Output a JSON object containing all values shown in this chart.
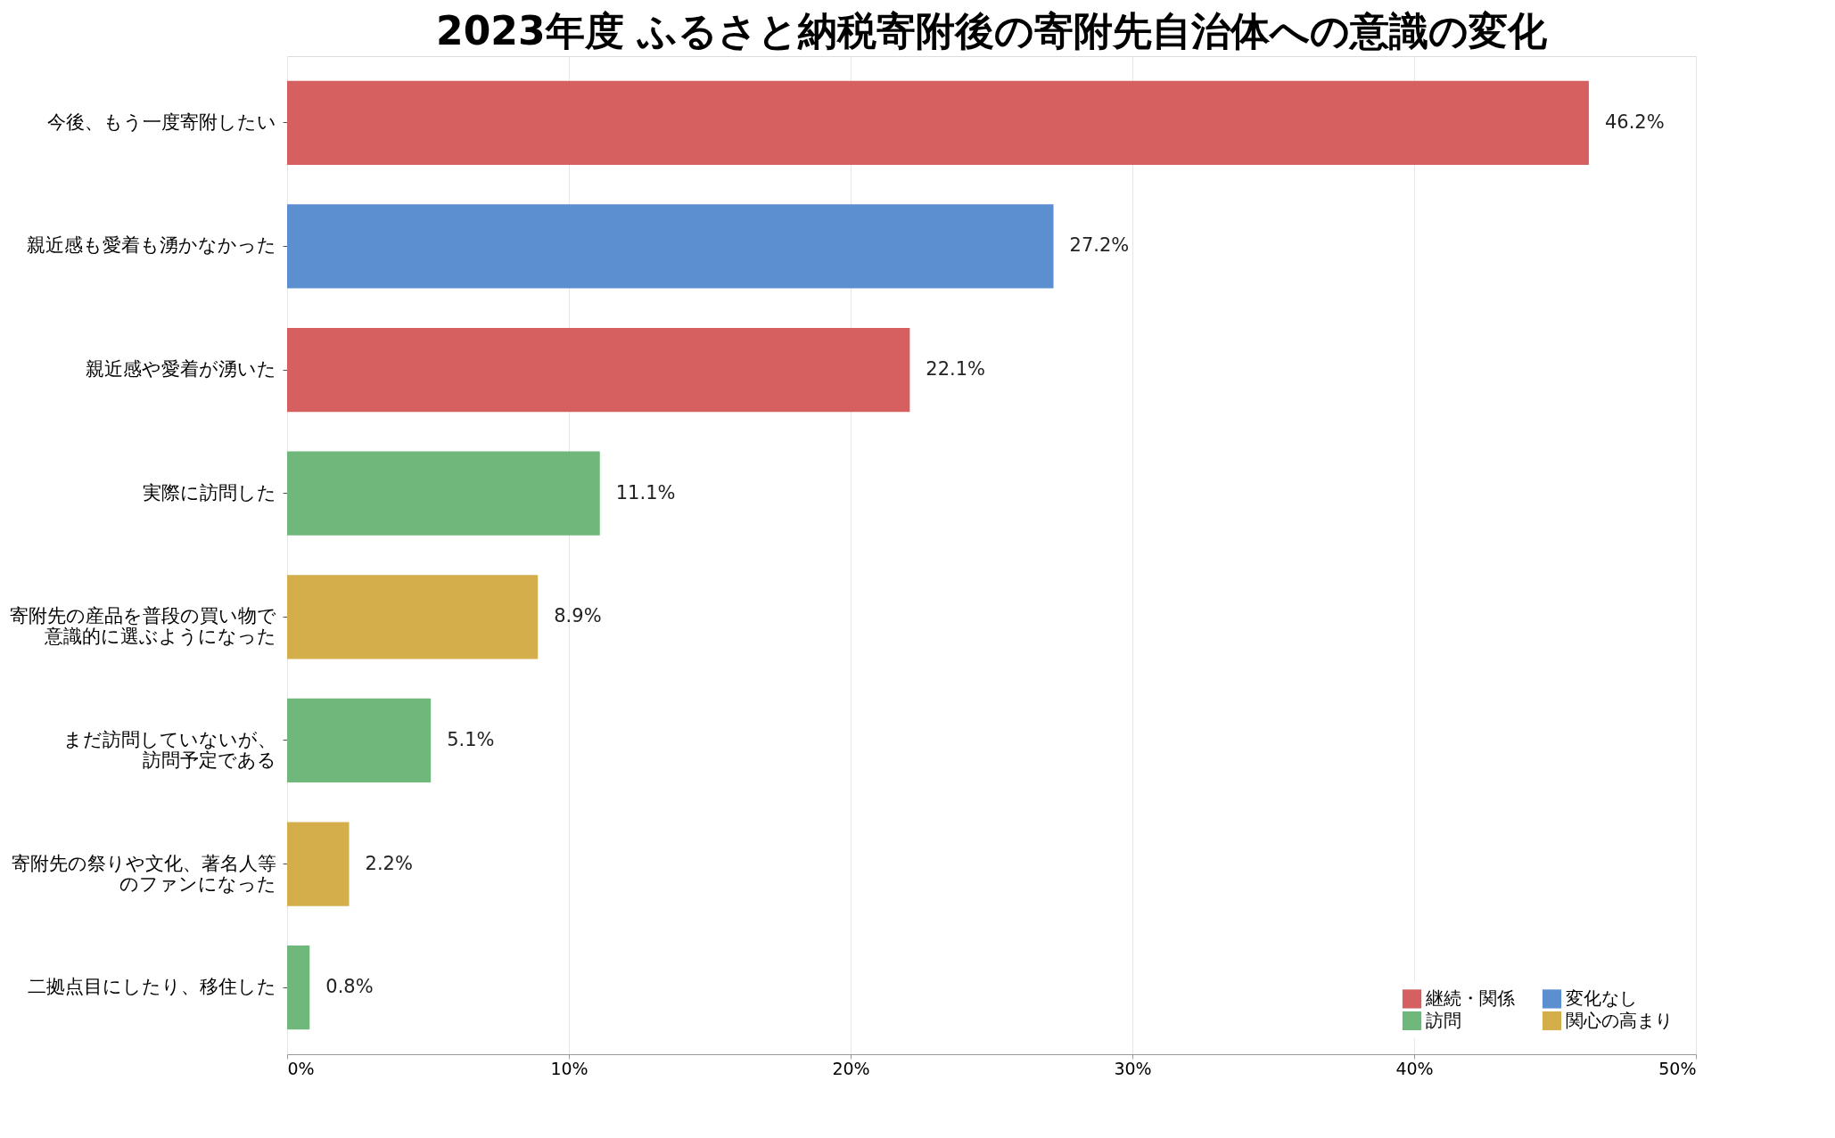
{
  "chart_data": {
    "type": "bar",
    "orientation": "horizontal",
    "title": "2023年度 ふるさと納税寄附後の寄附先自治体への意識の変化",
    "categories": [
      "今後、もう一度寄附したい",
      "親近感も愛着も湧かなかった",
      "親近感や愛着が湧いた",
      "実際に訪問した",
      "寄附先の産品を普段の買い物で意識的に選ぶようになった",
      "まだ訪問していないが、訪問予定である",
      "寄附先の祭りや文化、著名人等のファンになった",
      "二拠点目にしたり、移住した"
    ],
    "series": [
      {
        "name": "継続・関係",
        "color": "#d65f5f",
        "values": [
          46.2,
          null,
          22.1,
          null,
          null,
          null,
          null,
          null
        ],
        "value_labels": [
          "46.2%",
          null,
          "22.1%",
          null,
          null,
          null,
          null,
          null
        ]
      },
      {
        "name": "訪問",
        "color": "#6fb77a",
        "values": [
          null,
          null,
          null,
          11.1,
          null,
          5.1,
          null,
          0.8
        ],
        "value_labels": [
          null,
          null,
          null,
          "11.1%",
          null,
          "5.1%",
          null,
          "0.8%"
        ]
      },
      {
        "name": "変化なし",
        "color": "#5b8fd0",
        "values": [
          null,
          27.2,
          null,
          null,
          null,
          null,
          null,
          null
        ],
        "value_labels": [
          null,
          "27.2%",
          null,
          null,
          null,
          null,
          null,
          null
        ]
      },
      {
        "name": "関心の高まり",
        "color": "#d4ae4a",
        "values": [
          null,
          null,
          null,
          null,
          8.9,
          null,
          2.2,
          null
        ],
        "value_labels": [
          null,
          null,
          null,
          null,
          "8.9%",
          null,
          "2.2%",
          null
        ]
      }
    ],
    "xlim": [
      0,
      50
    ],
    "xticks": [
      {
        "value": 0,
        "label": "0%"
      },
      {
        "value": 10,
        "label": "10%"
      },
      {
        "value": 20,
        "label": "20%"
      },
      {
        "value": 30,
        "label": "30%"
      },
      {
        "value": 40,
        "label": "40%"
      },
      {
        "value": 50,
        "label": "50%"
      }
    ],
    "grid": "x",
    "legend": "bottom right"
  }
}
